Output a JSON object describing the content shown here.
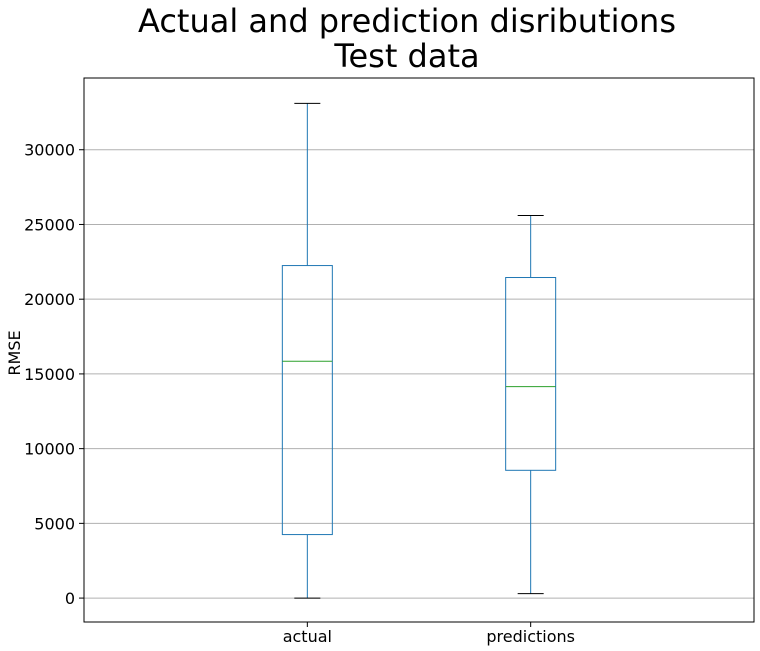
{
  "chart_data": {
    "type": "box",
    "title_lines": [
      "Actual and prediction disributions",
      "Test data"
    ],
    "xlabel": "",
    "ylabel": "RMSE",
    "ylim": [
      -1600,
      34800
    ],
    "yticks": [
      0,
      5000,
      10000,
      15000,
      20000,
      25000,
      30000
    ],
    "grid": "y",
    "categories": [
      "actual",
      "predictions"
    ],
    "boxes": [
      {
        "label": "actual",
        "whisker_low": 0,
        "q1": 4250,
        "median": 15850,
        "q3": 22250,
        "whisker_high": 33100
      },
      {
        "label": "predictions",
        "whisker_low": 300,
        "q1": 8550,
        "median": 14150,
        "q3": 21450,
        "whisker_high": 25600
      }
    ],
    "colors": {
      "box": "#1f77b4",
      "median": "#2ca02c",
      "whisker": "#1f77b4",
      "cap": "#000000",
      "grid": "#b0b0b0"
    }
  }
}
